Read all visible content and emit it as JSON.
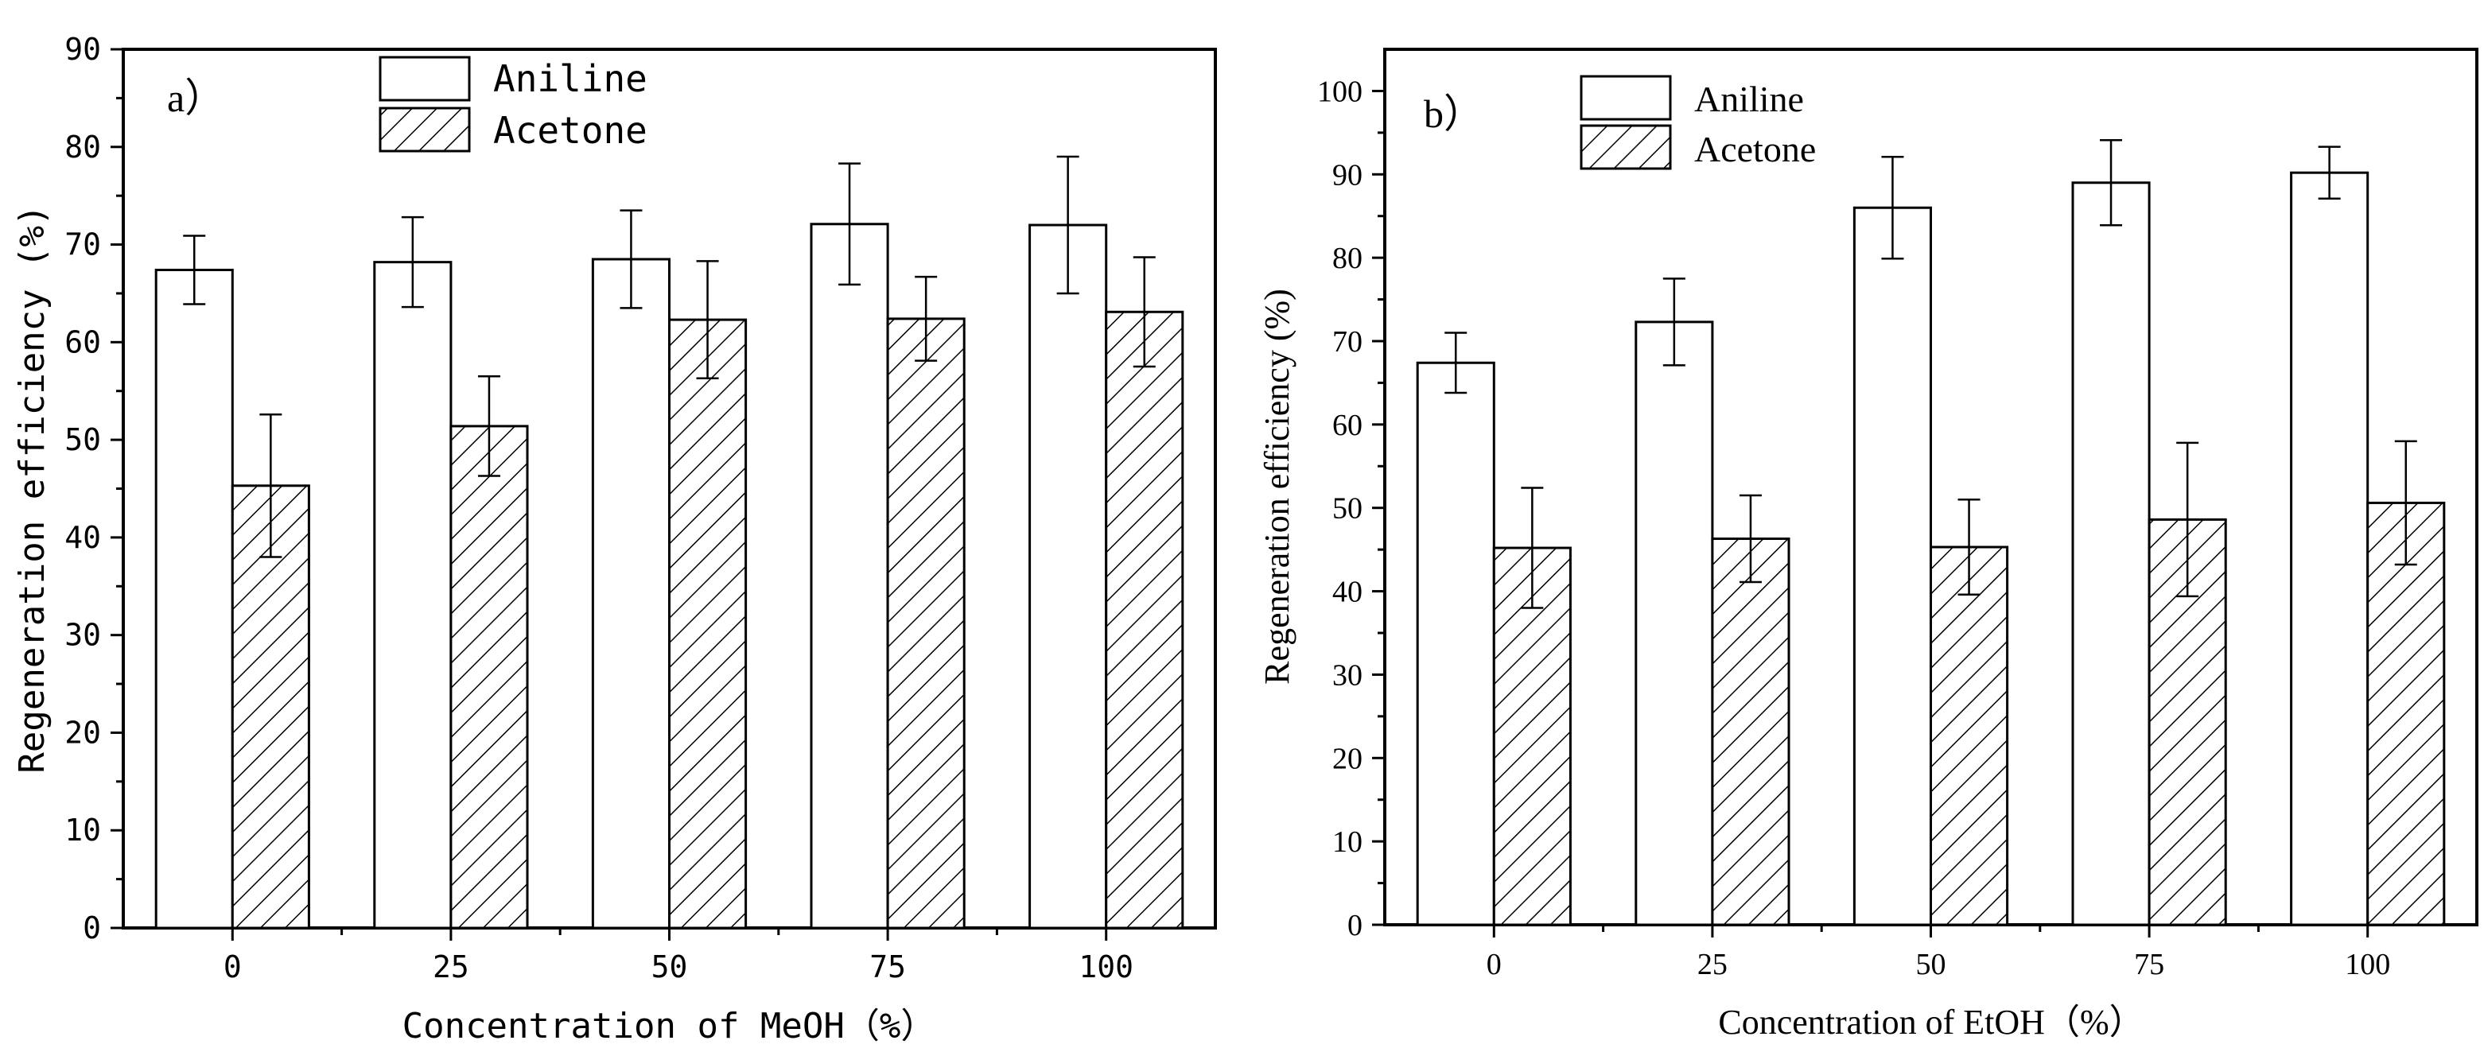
{
  "chart_data": [
    {
      "type": "bar",
      "panel_label": "a）",
      "categories": [
        "0",
        "25",
        "50",
        "75",
        "100"
      ],
      "series": [
        {
          "name": "Aniline",
          "fill": "open",
          "values": [
            67.4,
            68.2,
            68.5,
            72.1,
            72.0
          ],
          "errors": [
            3.5,
            4.6,
            5.0,
            6.2,
            7.0
          ]
        },
        {
          "name": "Acetone",
          "fill": "hatched",
          "values": [
            45.3,
            51.4,
            62.3,
            62.4,
            63.1
          ],
          "errors": [
            7.3,
            5.1,
            6.0,
            4.3,
            5.6
          ]
        }
      ],
      "title": "",
      "xlabel": "Concentration of MeOH（%）",
      "ylabel": "Regeneration efficiency (%)",
      "ylim": [
        0,
        90
      ],
      "yticks": [
        0,
        10,
        20,
        30,
        40,
        50,
        60,
        70,
        80,
        90
      ],
      "legend": "top-left"
    },
    {
      "type": "bar",
      "panel_label": "b）",
      "categories": [
        "0",
        "25",
        "50",
        "75",
        "100"
      ],
      "series": [
        {
          "name": "Aniline",
          "fill": "open",
          "values": [
            67.4,
            72.3,
            86.0,
            89.0,
            90.2
          ],
          "errors": [
            3.6,
            5.2,
            6.1,
            5.1,
            3.1
          ]
        },
        {
          "name": "Acetone",
          "fill": "hatched",
          "values": [
            45.2,
            46.3,
            45.3,
            48.6,
            50.6
          ],
          "errors": [
            7.2,
            5.2,
            5.7,
            9.2,
            7.4
          ]
        }
      ],
      "title": "",
      "xlabel": "Concentration of EtOH（%）",
      "ylabel": "Regeneration efficiency (%)",
      "ylim": [
        0,
        105
      ],
      "yticks": [
        0,
        10,
        20,
        30,
        40,
        50,
        60,
        70,
        80,
        90,
        100
      ],
      "legend": "top-left"
    }
  ]
}
